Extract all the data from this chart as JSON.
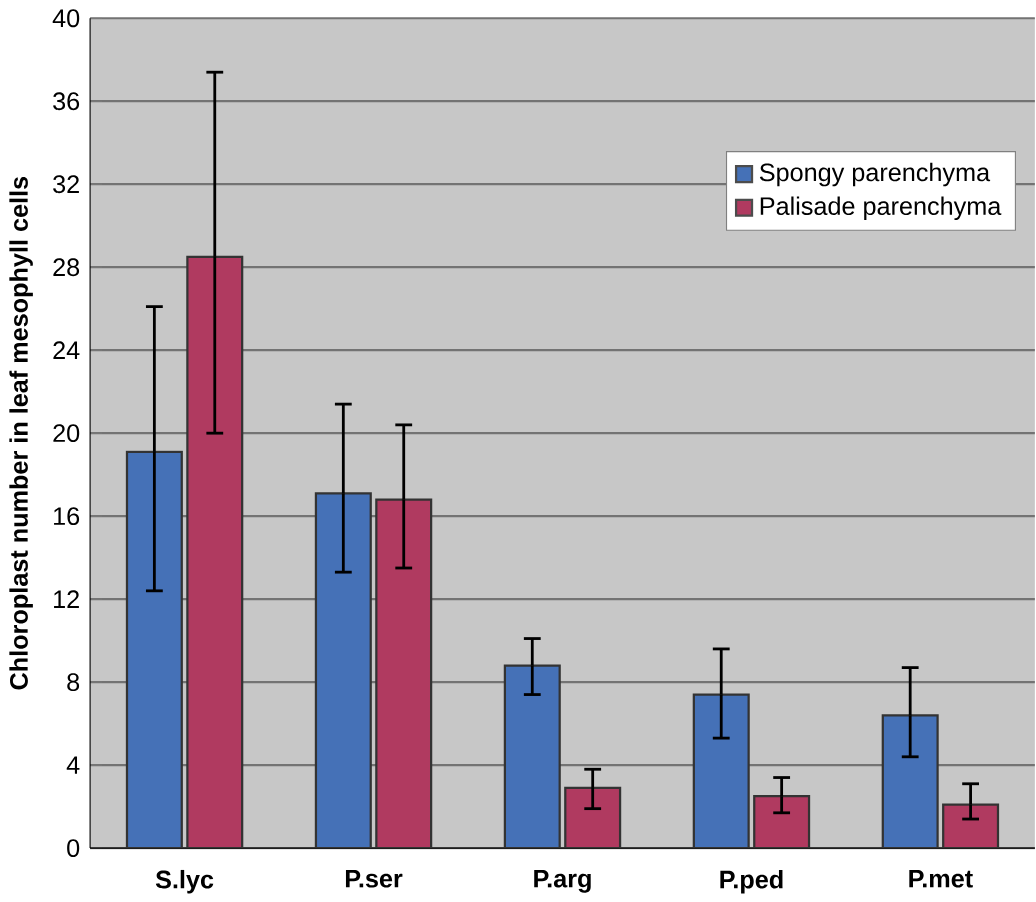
{
  "chart_data": {
    "type": "bar",
    "ylabel": "Chloroplast number in leaf mesophyll cells",
    "categories": [
      "S.lyc",
      "P.ser",
      "P.arg",
      "P.ped",
      "P.met"
    ],
    "series": [
      {
        "name": "Spongy parenchyma",
        "color": "#4571b7",
        "values": [
          19.1,
          17.1,
          8.8,
          7.4,
          6.4
        ],
        "errors": [
          [
            12.4,
            26.1
          ],
          [
            13.3,
            21.4
          ],
          [
            7.4,
            10.1
          ],
          [
            5.3,
            9.6
          ],
          [
            4.4,
            8.7
          ]
        ]
      },
      {
        "name": "Palisade parenchyma",
        "color": "#b03a60",
        "values": [
          28.5,
          16.8,
          2.9,
          2.5,
          2.1
        ],
        "errors": [
          [
            20.0,
            37.4
          ],
          [
            13.5,
            20.4
          ],
          [
            1.9,
            3.8
          ],
          [
            1.7,
            3.4
          ],
          [
            1.4,
            3.1
          ]
        ]
      }
    ],
    "ylim": [
      0,
      40
    ],
    "yticks": [
      0,
      4,
      8,
      12,
      16,
      20,
      24,
      28,
      32,
      36,
      40
    ],
    "grid": "y",
    "legend": "top right"
  }
}
